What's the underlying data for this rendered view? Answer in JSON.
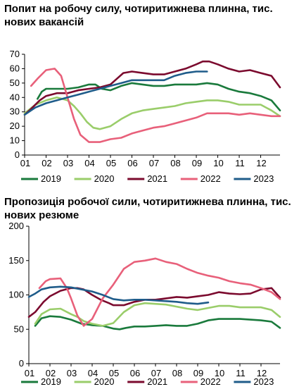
{
  "months": [
    "01",
    "02",
    "03",
    "04",
    "05",
    "06",
    "07",
    "08",
    "09",
    "10",
    "11",
    "12"
  ],
  "chart_data": [
    {
      "type": "line",
      "title": "Попит на робочу силу, чотиритижнева плинна, тис. нових вакансій",
      "ylim": [
        0,
        70
      ],
      "yticks": [
        0,
        10,
        20,
        30,
        40,
        50,
        60,
        70
      ],
      "xlim": [
        1,
        12.9
      ],
      "grid": false,
      "legend": "bottom",
      "series": [
        {
          "name": "2019",
          "color": "#1a7a3c",
          "x": [
            1.6,
            1.8,
            2.0,
            2.5,
            3.0,
            3.5,
            4.0,
            4.3,
            4.6,
            5.0,
            5.5,
            6.0,
            6.5,
            7.0,
            7.5,
            8.0,
            8.5,
            9.0,
            9.5,
            10.0,
            10.5,
            11.0,
            11.5,
            12.0,
            12.5,
            12.9
          ],
          "y": [
            39,
            44,
            46,
            46,
            46,
            47,
            49,
            49,
            46,
            45,
            48,
            50,
            49,
            48,
            48,
            49,
            49,
            49,
            50,
            49,
            46,
            44,
            43,
            41,
            38,
            31
          ]
        },
        {
          "name": "2020",
          "color": "#9acd6a",
          "x": [
            1.0,
            1.5,
            2.0,
            2.5,
            3.0,
            3.3,
            3.6,
            3.9,
            4.2,
            4.5,
            5.0,
            5.5,
            6.0,
            6.5,
            7.0,
            7.5,
            8.0,
            8.5,
            9.0,
            9.5,
            10.0,
            10.5,
            11.0,
            11.5,
            12.0,
            12.5,
            12.9
          ],
          "y": [
            29,
            35,
            38,
            40,
            38,
            34,
            29,
            23,
            19,
            18,
            20,
            25,
            29,
            31,
            32,
            33,
            34,
            36,
            37,
            38,
            38,
            37,
            35,
            35,
            35,
            31,
            27
          ]
        },
        {
          "name": "2021",
          "color": "#7b0a2e",
          "x": [
            1.0,
            1.3,
            1.7,
            2.0,
            2.5,
            3.0,
            3.5,
            4.0,
            4.5,
            5.0,
            5.3,
            5.6,
            6.0,
            6.5,
            7.0,
            7.5,
            8.0,
            8.5,
            9.0,
            9.3,
            9.6,
            10.0,
            10.5,
            11.0,
            11.5,
            12.0,
            12.5,
            12.9
          ],
          "y": [
            28,
            32,
            38,
            41,
            43,
            43,
            45,
            46,
            47,
            49,
            53,
            57,
            58,
            57,
            56,
            56,
            58,
            60,
            63,
            65,
            65,
            63,
            60,
            58,
            59,
            57,
            55,
            47
          ]
        },
        {
          "name": "2022",
          "color": "#e8607a",
          "x": [
            1.3,
            1.6,
            2.0,
            2.4,
            2.7,
            3.0,
            3.3,
            3.6,
            4.0,
            4.5,
            5.0,
            5.5,
            6.0,
            6.5,
            7.0,
            7.5,
            8.0,
            8.5,
            9.0,
            9.5,
            10.0,
            10.5,
            11.0,
            11.5,
            12.0,
            12.5,
            12.9
          ],
          "y": [
            48,
            53,
            59,
            60,
            55,
            40,
            25,
            14,
            9,
            9,
            11,
            12,
            15,
            17,
            19,
            20,
            22,
            24,
            26,
            29,
            29,
            29,
            28,
            29,
            28,
            27,
            27
          ]
        },
        {
          "name": "2023",
          "color": "#1f5c8a",
          "x": [
            1.0,
            1.5,
            2.0,
            2.5,
            3.0,
            3.5,
            4.0,
            4.5,
            5.0,
            5.5,
            6.0,
            6.5,
            7.0,
            7.5,
            8.0,
            8.5,
            9.0,
            9.5
          ],
          "y": [
            28,
            33,
            36,
            38,
            40,
            42,
            44,
            46,
            48,
            50,
            52,
            52,
            52,
            52,
            55,
            57,
            58,
            58
          ]
        }
      ]
    },
    {
      "type": "line",
      "title": "Пропозиція робочої сили, чотиритижнева плинна, тис. нових резюме",
      "ylim": [
        0,
        200
      ],
      "yticks": [
        0,
        50,
        100,
        150,
        200
      ],
      "xlim": [
        1,
        12.9
      ],
      "grid": false,
      "legend": "bottom",
      "series": [
        {
          "name": "2019",
          "color": "#1a7a3c",
          "x": [
            1.3,
            1.6,
            2.0,
            2.5,
            3.0,
            3.5,
            4.0,
            4.5,
            5.0,
            5.3,
            5.6,
            6.0,
            6.5,
            7.0,
            7.5,
            8.0,
            8.5,
            9.0,
            9.5,
            10.0,
            10.5,
            11.0,
            11.5,
            12.0,
            12.5,
            12.9
          ],
          "y": [
            55,
            66,
            69,
            68,
            64,
            58,
            56,
            55,
            51,
            50,
            52,
            54,
            54,
            55,
            56,
            55,
            55,
            58,
            63,
            65,
            65,
            65,
            64,
            63,
            61,
            52
          ]
        },
        {
          "name": "2020",
          "color": "#9acd6a",
          "x": [
            1.3,
            1.6,
            2.0,
            2.5,
            3.0,
            3.3,
            3.6,
            4.0,
            4.5,
            5.0,
            5.5,
            6.0,
            6.5,
            7.0,
            7.5,
            8.0,
            8.5,
            9.0,
            9.5,
            10.0,
            10.5,
            11.0,
            11.5,
            12.0,
            12.5,
            12.9
          ],
          "y": [
            58,
            72,
            79,
            80,
            72,
            68,
            62,
            58,
            55,
            59,
            75,
            85,
            88,
            87,
            86,
            83,
            80,
            78,
            81,
            84,
            84,
            82,
            82,
            82,
            78,
            68
          ]
        },
        {
          "name": "2021",
          "color": "#7b0a2e",
          "x": [
            1.0,
            1.3,
            1.7,
            2.0,
            2.5,
            3.0,
            3.3,
            3.6,
            4.0,
            4.4,
            4.8,
            5.0,
            5.5,
            6.0,
            6.5,
            7.0,
            7.5,
            8.0,
            8.5,
            9.0,
            9.5,
            10.0,
            10.5,
            11.0,
            11.5,
            12.0,
            12.5,
            12.9
          ],
          "y": [
            68,
            75,
            90,
            98,
            106,
            110,
            110,
            108,
            100,
            93,
            88,
            85,
            85,
            90,
            93,
            93,
            95,
            97,
            96,
            98,
            100,
            104,
            102,
            101,
            102,
            108,
            110,
            96
          ]
        },
        {
          "name": "2022",
          "color": "#e8607a",
          "x": [
            1.5,
            1.8,
            2.0,
            2.5,
            2.8,
            3.0,
            3.3,
            3.6,
            4.0,
            4.5,
            5.0,
            5.5,
            6.0,
            6.5,
            7.0,
            7.5,
            8.0,
            8.5,
            9.0,
            9.5,
            10.0,
            10.5,
            11.0,
            11.5,
            12.0,
            12.5,
            12.9
          ],
          "y": [
            110,
            120,
            123,
            124,
            110,
            95,
            70,
            55,
            65,
            95,
            115,
            138,
            148,
            150,
            153,
            148,
            145,
            138,
            132,
            128,
            125,
            120,
            117,
            115,
            110,
            104,
            94
          ]
        },
        {
          "name": "2023",
          "color": "#1f5c8a",
          "x": [
            1.0,
            1.3,
            1.6,
            2.0,
            2.5,
            3.0,
            3.5,
            4.0,
            4.5,
            5.0,
            5.5,
            6.0,
            6.5,
            7.0,
            7.5,
            8.0,
            8.5,
            9.0,
            9.5
          ],
          "y": [
            97,
            102,
            108,
            111,
            112,
            111,
            108,
            105,
            100,
            94,
            92,
            93,
            93,
            92,
            91,
            90,
            88,
            87,
            89
          ]
        }
      ]
    }
  ]
}
